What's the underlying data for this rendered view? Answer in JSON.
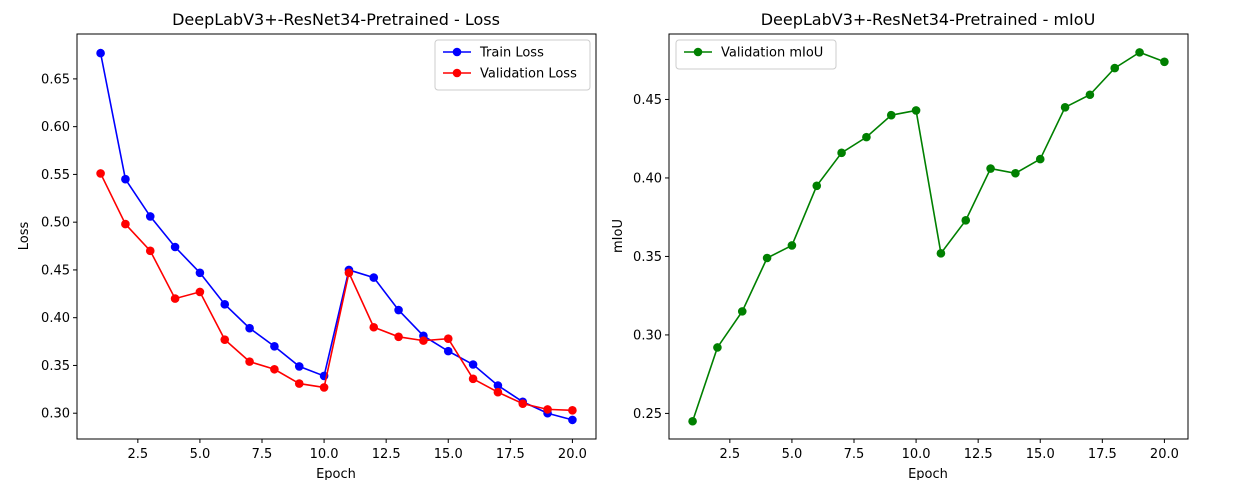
{
  "chart_data": [
    {
      "type": "line",
      "title": "DeepLabV3+-ResNet34-Pretrained - Loss",
      "xlabel": "Epoch",
      "ylabel": "Loss",
      "xlim": [
        0.05,
        20.95
      ],
      "ylim": [
        0.273,
        0.697
      ],
      "xticks": [
        2.5,
        5.0,
        7.5,
        10.0,
        12.5,
        15.0,
        17.5,
        20.0
      ],
      "xtick_labels": [
        "2.5",
        "5.0",
        "7.5",
        "10.0",
        "12.5",
        "15.0",
        "17.5",
        "20.0"
      ],
      "yticks": [
        0.3,
        0.35,
        0.4,
        0.45,
        0.5,
        0.55,
        0.6,
        0.65
      ],
      "ytick_labels": [
        "0.30",
        "0.35",
        "0.40",
        "0.45",
        "0.50",
        "0.55",
        "0.60",
        "0.65"
      ],
      "grid": false,
      "legend_position": "top-right",
      "x": [
        1,
        2,
        3,
        4,
        5,
        6,
        7,
        8,
        9,
        10,
        11,
        12,
        13,
        14,
        15,
        16,
        17,
        18,
        19,
        20
      ],
      "series": [
        {
          "name": "Train Loss",
          "color": "#0000ff",
          "marker": "circle",
          "values": [
            0.677,
            0.545,
            0.506,
            0.474,
            0.447,
            0.414,
            0.389,
            0.37,
            0.349,
            0.339,
            0.45,
            0.442,
            0.408,
            0.381,
            0.365,
            0.351,
            0.329,
            0.312,
            0.3,
            0.293
          ]
        },
        {
          "name": "Validation Loss",
          "color": "#ff0000",
          "marker": "circle",
          "values": [
            0.551,
            0.498,
            0.47,
            0.42,
            0.427,
            0.377,
            0.354,
            0.346,
            0.331,
            0.327,
            0.447,
            0.39,
            0.38,
            0.376,
            0.378,
            0.336,
            0.322,
            0.31,
            0.304,
            0.303
          ]
        }
      ]
    },
    {
      "type": "line",
      "title": "DeepLabV3+-ResNet34-Pretrained - mIoU",
      "xlabel": "Epoch",
      "ylabel": "mIoU",
      "xlim": [
        0.05,
        20.95
      ],
      "ylim": [
        0.2337,
        0.4917
      ],
      "xticks": [
        2.5,
        5.0,
        7.5,
        10.0,
        12.5,
        15.0,
        17.5,
        20.0
      ],
      "xtick_labels": [
        "2.5",
        "5.0",
        "7.5",
        "10.0",
        "12.5",
        "15.0",
        "17.5",
        "20.0"
      ],
      "yticks": [
        0.25,
        0.3,
        0.35,
        0.4,
        0.45
      ],
      "ytick_labels": [
        "0.25",
        "0.30",
        "0.35",
        "0.40",
        "0.45"
      ],
      "grid": false,
      "legend_position": "top-left",
      "x": [
        1,
        2,
        3,
        4,
        5,
        6,
        7,
        8,
        9,
        10,
        11,
        12,
        13,
        14,
        15,
        16,
        17,
        18,
        19,
        20
      ],
      "series": [
        {
          "name": "Validation mIoU",
          "color": "#008000",
          "marker": "circle",
          "values": [
            0.245,
            0.292,
            0.315,
            0.349,
            0.357,
            0.395,
            0.416,
            0.426,
            0.44,
            0.443,
            0.352,
            0.373,
            0.406,
            0.403,
            0.412,
            0.445,
            0.453,
            0.47,
            0.48,
            0.474
          ]
        }
      ]
    }
  ]
}
